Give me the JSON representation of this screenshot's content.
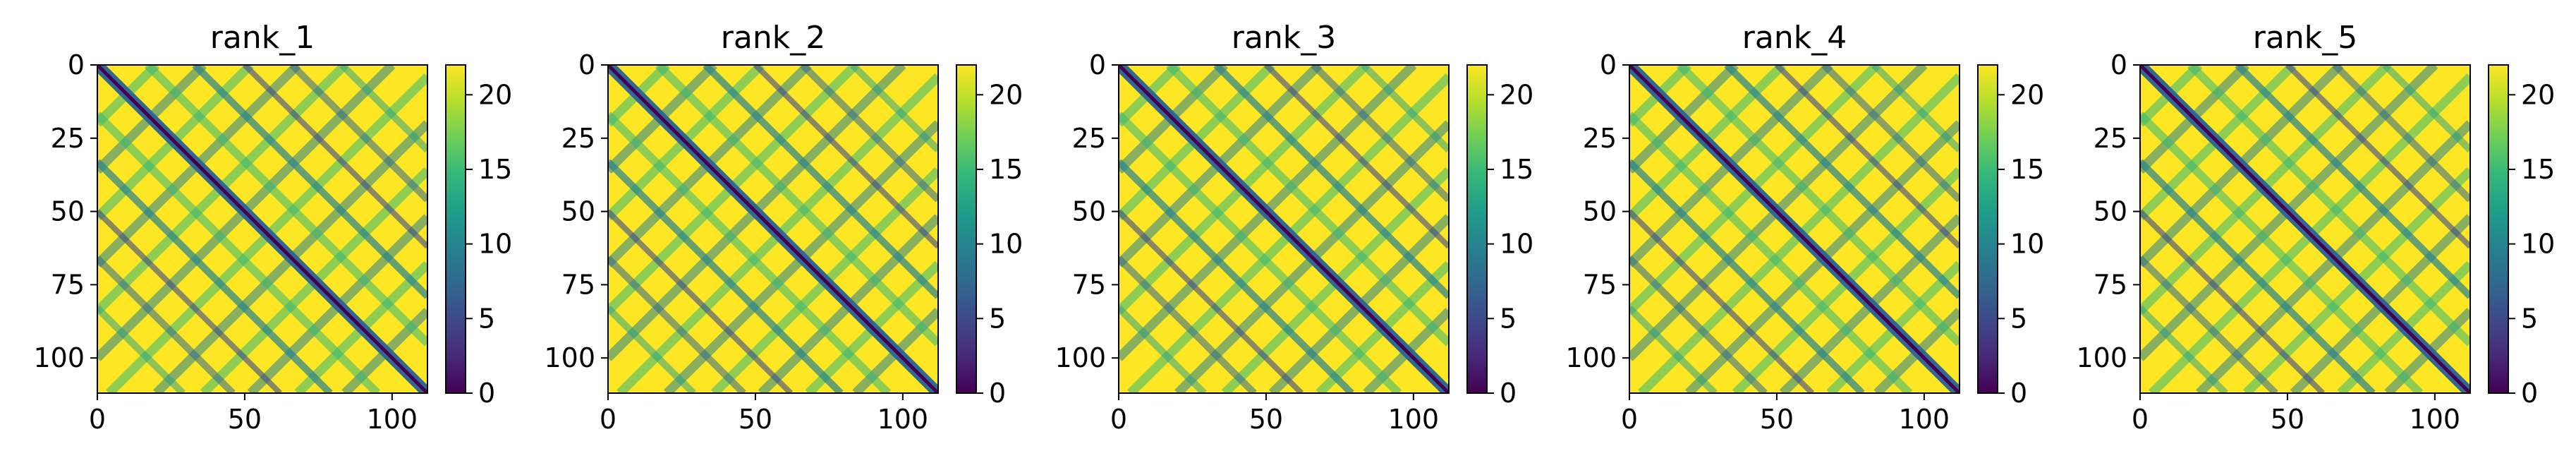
{
  "chart_data": [
    {
      "type": "heatmap",
      "title": "rank_1",
      "xlim": [
        0,
        112
      ],
      "ylim": [
        112,
        0
      ],
      "xticks": [
        0,
        50,
        100
      ],
      "yticks": [
        0,
        25,
        50,
        75,
        100
      ],
      "colorbar": {
        "min": 0,
        "max": 22,
        "ticks": [
          0,
          5,
          10,
          15,
          20
        ],
        "colormap": "viridis"
      },
      "grid": false
    },
    {
      "type": "heatmap",
      "title": "rank_2",
      "xlim": [
        0,
        112
      ],
      "ylim": [
        112,
        0
      ],
      "xticks": [
        0,
        50,
        100
      ],
      "yticks": [
        0,
        25,
        50,
        75,
        100
      ],
      "colorbar": {
        "min": 0,
        "max": 22,
        "ticks": [
          0,
          5,
          10,
          15,
          20
        ],
        "colormap": "viridis"
      },
      "grid": false
    },
    {
      "type": "heatmap",
      "title": "rank_3",
      "xlim": [
        0,
        112
      ],
      "ylim": [
        112,
        0
      ],
      "xticks": [
        0,
        50,
        100
      ],
      "yticks": [
        0,
        25,
        50,
        75,
        100
      ],
      "colorbar": {
        "min": 0,
        "max": 22,
        "ticks": [
          0,
          5,
          10,
          15,
          20
        ],
        "colormap": "viridis"
      },
      "grid": false
    },
    {
      "type": "heatmap",
      "title": "rank_4",
      "xlim": [
        0,
        112
      ],
      "ylim": [
        112,
        0
      ],
      "xticks": [
        0,
        50,
        100
      ],
      "yticks": [
        0,
        25,
        50,
        75,
        100
      ],
      "colorbar": {
        "min": 0,
        "max": 22,
        "ticks": [
          0,
          5,
          10,
          15,
          20
        ],
        "colormap": "viridis"
      },
      "grid": false
    },
    {
      "type": "heatmap",
      "title": "rank_5",
      "xlim": [
        0,
        112
      ],
      "ylim": [
        112,
        0
      ],
      "xticks": [
        0,
        50,
        100
      ],
      "yticks": [
        0,
        25,
        50,
        75,
        100
      ],
      "colorbar": {
        "min": 0,
        "max": 22,
        "ticks": [
          0,
          5,
          10,
          15,
          20
        ],
        "colormap": "viridis"
      },
      "grid": false
    }
  ],
  "colors": {
    "viridis": [
      "#440154",
      "#482878",
      "#3e4989",
      "#31688e",
      "#26828e",
      "#1f9e89",
      "#35b779",
      "#6ece58",
      "#b5de2b",
      "#fde725"
    ]
  }
}
